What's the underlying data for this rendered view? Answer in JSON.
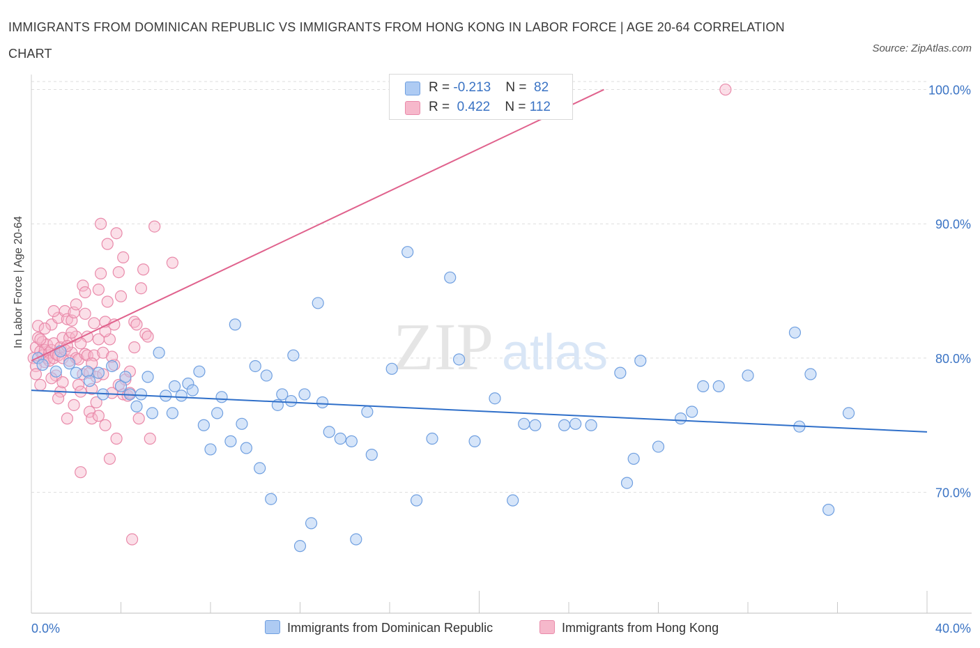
{
  "title": "IMMIGRANTS FROM DOMINICAN REPUBLIC VS IMMIGRANTS FROM HONG KONG IN LABOR FORCE | AGE 20-64 CORRELATION CHART",
  "source": "Source: ZipAtlas.com",
  "watermark": {
    "zip": "ZIP",
    "atlas": "atlas"
  },
  "colors": {
    "blue_fill": "#aecbf3",
    "blue_stroke": "#6f9fe0",
    "blue_line": "#2f6fc9",
    "pink_fill": "#f6b8cb",
    "pink_stroke": "#e98aaa",
    "pink_line": "#e0628d",
    "tick_label": "#3a73c4"
  },
  "legend": {
    "blue": {
      "r_label": "R = ",
      "r_value": "-0.213",
      "n_label": "N = ",
      "n_value": "82"
    },
    "pink": {
      "r_label": "R = ",
      "r_value": "0.422",
      "n_label": "N = ",
      "n_value": "112"
    }
  },
  "chart_data": {
    "type": "scatter",
    "title": "IMMIGRANTS FROM DOMINICAN REPUBLIC VS IMMIGRANTS FROM HONG KONG IN LABOR FORCE | AGE 20-64 CORRELATION CHART",
    "xlabel": "",
    "ylabel": "In Labor Force | Age 20-64",
    "xlim": [
      0,
      40
    ],
    "ylim": [
      61,
      100.6
    ],
    "x_tick_labels": [
      "0.0%",
      "40.0%"
    ],
    "y_ticks": [
      70,
      80,
      90,
      100
    ],
    "y_tick_labels": [
      "70.0%",
      "80.0%",
      "90.0%",
      "100.0%"
    ],
    "grid": true,
    "legend_position": "top-center",
    "series": [
      {
        "name": "Immigrants from Dominican Republic",
        "color": "#aecbf3",
        "trend": {
          "x": [
            0,
            40
          ],
          "y": [
            77.6,
            74.5
          ]
        },
        "points": [
          [
            0.3,
            80.0
          ],
          [
            0.5,
            79.5
          ],
          [
            1.1,
            79.0
          ],
          [
            1.3,
            80.5
          ],
          [
            1.7,
            79.6
          ],
          [
            2.0,
            78.9
          ],
          [
            2.5,
            79.0
          ],
          [
            2.6,
            78.3
          ],
          [
            3.0,
            78.9
          ],
          [
            3.2,
            77.3
          ],
          [
            3.6,
            79.4
          ],
          [
            4.0,
            77.9
          ],
          [
            4.2,
            78.6
          ],
          [
            4.4,
            77.3
          ],
          [
            4.7,
            76.4
          ],
          [
            4.9,
            77.3
          ],
          [
            5.2,
            78.6
          ],
          [
            5.4,
            75.9
          ],
          [
            5.7,
            80.4
          ],
          [
            6.0,
            77.2
          ],
          [
            6.3,
            75.9
          ],
          [
            6.4,
            77.9
          ],
          [
            6.7,
            77.2
          ],
          [
            7.0,
            78.1
          ],
          [
            7.2,
            77.6
          ],
          [
            7.5,
            79.0
          ],
          [
            7.7,
            75.0
          ],
          [
            8.0,
            73.2
          ],
          [
            8.3,
            75.9
          ],
          [
            8.5,
            77.1
          ],
          [
            8.9,
            73.8
          ],
          [
            9.1,
            82.5
          ],
          [
            9.4,
            75.1
          ],
          [
            9.6,
            73.3
          ],
          [
            10.0,
            79.4
          ],
          [
            10.2,
            71.8
          ],
          [
            10.5,
            78.7
          ],
          [
            10.7,
            69.5
          ],
          [
            11.0,
            76.5
          ],
          [
            11.2,
            77.3
          ],
          [
            11.6,
            76.8
          ],
          [
            11.7,
            80.2
          ],
          [
            12.0,
            66.0
          ],
          [
            12.2,
            77.3
          ],
          [
            12.5,
            67.7
          ],
          [
            12.8,
            84.1
          ],
          [
            13.0,
            76.7
          ],
          [
            13.3,
            74.5
          ],
          [
            13.8,
            74.0
          ],
          [
            14.3,
            73.8
          ],
          [
            14.5,
            66.5
          ],
          [
            15.0,
            76.0
          ],
          [
            15.2,
            72.8
          ],
          [
            16.1,
            79.2
          ],
          [
            16.8,
            87.9
          ],
          [
            17.2,
            69.4
          ],
          [
            17.9,
            74.0
          ],
          [
            18.7,
            86.0
          ],
          [
            19.1,
            79.9
          ],
          [
            19.8,
            73.8
          ],
          [
            20.7,
            77.0
          ],
          [
            21.5,
            69.4
          ],
          [
            22.0,
            75.1
          ],
          [
            22.5,
            75.0
          ],
          [
            23.8,
            75.0
          ],
          [
            24.3,
            75.1
          ],
          [
            25.0,
            75.0
          ],
          [
            26.3,
            78.9
          ],
          [
            26.6,
            70.7
          ],
          [
            26.9,
            72.5
          ],
          [
            27.2,
            79.8
          ],
          [
            28.0,
            73.4
          ],
          [
            29.0,
            75.5
          ],
          [
            29.5,
            76.0
          ],
          [
            30.0,
            77.9
          ],
          [
            30.7,
            77.9
          ],
          [
            32.0,
            78.7
          ],
          [
            34.1,
            81.9
          ],
          [
            34.3,
            74.9
          ],
          [
            34.8,
            78.8
          ],
          [
            35.6,
            68.7
          ],
          [
            36.5,
            75.9
          ]
        ]
      },
      {
        "name": "Immigrants from Hong Kong",
        "color": "#f6b8cb",
        "trend": {
          "x": [
            0,
            40
          ],
          "y": [
            79.8,
            111.4
          ]
        },
        "points": [
          [
            0.1,
            80.0
          ],
          [
            0.2,
            79.4
          ],
          [
            0.2,
            80.8
          ],
          [
            0.3,
            81.5
          ],
          [
            0.3,
            82.4
          ],
          [
            0.4,
            80.5
          ],
          [
            0.4,
            78.0
          ],
          [
            0.5,
            80.2
          ],
          [
            0.5,
            81.2
          ],
          [
            0.6,
            80.6
          ],
          [
            0.6,
            79.7
          ],
          [
            0.7,
            80.0
          ],
          [
            0.7,
            81.0
          ],
          [
            0.8,
            80.4
          ],
          [
            0.8,
            79.8
          ],
          [
            0.9,
            82.5
          ],
          [
            0.9,
            80.6
          ],
          [
            1.0,
            81.1
          ],
          [
            1.0,
            80.0
          ],
          [
            1.1,
            78.7
          ],
          [
            1.1,
            80.3
          ],
          [
            1.2,
            83.0
          ],
          [
            1.2,
            80.2
          ],
          [
            1.3,
            77.5
          ],
          [
            1.3,
            80.8
          ],
          [
            1.4,
            81.5
          ],
          [
            1.4,
            80.0
          ],
          [
            1.5,
            83.5
          ],
          [
            1.5,
            80.6
          ],
          [
            1.6,
            75.5
          ],
          [
            1.6,
            82.9
          ],
          [
            1.7,
            81.5
          ],
          [
            1.7,
            79.8
          ],
          [
            1.8,
            82.8
          ],
          [
            1.8,
            80.4
          ],
          [
            1.9,
            76.5
          ],
          [
            1.9,
            83.4
          ],
          [
            2.0,
            81.6
          ],
          [
            2.0,
            80.0
          ],
          [
            2.1,
            78.0
          ],
          [
            2.1,
            79.9
          ],
          [
            2.2,
            71.5
          ],
          [
            2.2,
            77.5
          ],
          [
            2.3,
            85.4
          ],
          [
            2.3,
            78.8
          ],
          [
            2.4,
            80.3
          ],
          [
            2.4,
            83.3
          ],
          [
            2.5,
            81.6
          ],
          [
            2.5,
            80.2
          ],
          [
            2.6,
            76.0
          ],
          [
            2.6,
            78.9
          ],
          [
            2.7,
            75.5
          ],
          [
            2.7,
            77.7
          ],
          [
            2.8,
            80.2
          ],
          [
            2.8,
            82.6
          ],
          [
            2.9,
            76.7
          ],
          [
            2.9,
            78.6
          ],
          [
            3.0,
            85.1
          ],
          [
            3.0,
            81.4
          ],
          [
            3.1,
            90.0
          ],
          [
            3.1,
            86.3
          ],
          [
            3.2,
            80.4
          ],
          [
            3.2,
            78.8
          ],
          [
            3.3,
            82.7
          ],
          [
            3.3,
            75.0
          ],
          [
            3.4,
            84.2
          ],
          [
            3.4,
            88.5
          ],
          [
            3.5,
            72.5
          ],
          [
            3.5,
            81.4
          ],
          [
            3.6,
            77.4
          ],
          [
            3.7,
            82.5
          ],
          [
            3.7,
            79.5
          ],
          [
            3.8,
            74.0
          ],
          [
            3.8,
            89.3
          ],
          [
            3.9,
            86.4
          ],
          [
            4.0,
            84.6
          ],
          [
            4.1,
            87.5
          ],
          [
            4.1,
            77.3
          ],
          [
            4.2,
            78.4
          ],
          [
            4.3,
            77.2
          ],
          [
            4.4,
            77.4
          ],
          [
            4.5,
            66.5
          ],
          [
            4.6,
            82.7
          ],
          [
            4.6,
            80.8
          ],
          [
            4.7,
            82.5
          ],
          [
            4.8,
            75.5
          ],
          [
            4.9,
            85.2
          ],
          [
            5.0,
            86.6
          ],
          [
            5.1,
            81.8
          ],
          [
            5.2,
            81.6
          ],
          [
            5.3,
            74.0
          ],
          [
            5.5,
            89.8
          ],
          [
            6.3,
            87.1
          ],
          [
            3.0,
            75.7
          ],
          [
            2.0,
            84.0
          ],
          [
            1.0,
            83.5
          ],
          [
            0.6,
            82.2
          ],
          [
            0.4,
            81.4
          ],
          [
            1.6,
            80.9
          ],
          [
            2.2,
            81.1
          ],
          [
            3.6,
            80.1
          ],
          [
            0.9,
            78.5
          ],
          [
            1.4,
            78.2
          ],
          [
            2.7,
            79.6
          ],
          [
            3.9,
            78.0
          ],
          [
            4.4,
            79.0
          ],
          [
            2.4,
            84.9
          ],
          [
            3.3,
            82.0
          ],
          [
            1.8,
            81.9
          ],
          [
            0.2,
            78.8
          ],
          [
            1.2,
            77.0
          ],
          [
            31.0,
            100.0
          ]
        ]
      }
    ]
  }
}
